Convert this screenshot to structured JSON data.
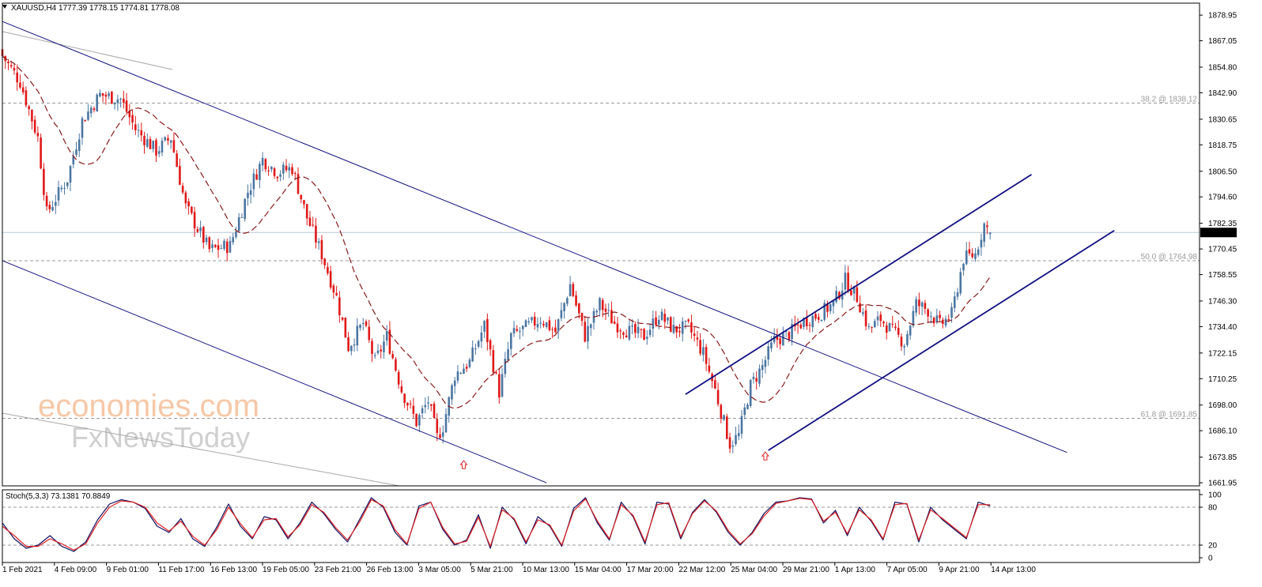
{
  "header": {
    "symbol_line": "XAUUSD,H4  1777.39 1778.15 1774.81 1778.08",
    "stoch_line": "Stoch(5,3,3) 73.1381 70.8849"
  },
  "watermark": {
    "line1": "economies.com",
    "line2": "FxNewsToday"
  },
  "colors": {
    "bull": "#4b76a2",
    "bear": "#e01818",
    "ma": "#8b1a1a",
    "channel": "#101080",
    "stoch_main": "#101060",
    "stoch_signal": "#e02020"
  },
  "chart_data": [
    {
      "type": "candlestick",
      "symbol": "XAUUSD",
      "timeframe": "H4",
      "last_ohlc": {
        "open": 1777.39,
        "high": 1778.15,
        "low": 1774.81,
        "close": 1778.08
      },
      "current_price_label": "1778.08",
      "y_ticks": [
        "1878.95",
        "1867.05",
        "1854.80",
        "1842.90",
        "1830.65",
        "1818.75",
        "1806.50",
        "1794.60",
        "1782.35",
        "1770.45",
        "1758.55",
        "1746.30",
        "1734.40",
        "1722.15",
        "1710.25",
        "1698.00",
        "1686.10",
        "1673.85",
        "1661.95"
      ],
      "ylim": [
        1660.5,
        1884.5
      ],
      "x_ticks": [
        "1 Feb 2021",
        "4 Feb 09:00",
        "9 Feb 01:00",
        "11 Feb 17:00",
        "16 Feb 13:00",
        "19 Feb 05:00",
        "23 Feb 21:00",
        "26 Feb 13:00",
        "3 Mar 05:00",
        "5 Mar 21:00",
        "10 Mar 13:00",
        "15 Mar 04:00",
        "17 Mar 20:00",
        "22 Mar 12:00",
        "25 Mar 04:00",
        "29 Mar 21:00",
        "1 Apr 13:00",
        "7 Apr 05:00",
        "9 Apr 21:00",
        "14 Apr 13:00"
      ],
      "close_path": [
        {
          "bar": 0,
          "price": 1860
        },
        {
          "bar": 6,
          "price": 1848
        },
        {
          "bar": 12,
          "price": 1822
        },
        {
          "bar": 15,
          "price": 1787
        },
        {
          "bar": 22,
          "price": 1803
        },
        {
          "bar": 27,
          "price": 1830
        },
        {
          "bar": 33,
          "price": 1842
        },
        {
          "bar": 40,
          "price": 1840
        },
        {
          "bar": 45,
          "price": 1826
        },
        {
          "bar": 52,
          "price": 1816
        },
        {
          "bar": 57,
          "price": 1822
        },
        {
          "bar": 62,
          "price": 1790
        },
        {
          "bar": 70,
          "price": 1770
        },
        {
          "bar": 77,
          "price": 1772
        },
        {
          "bar": 83,
          "price": 1797
        },
        {
          "bar": 88,
          "price": 1812
        },
        {
          "bar": 93,
          "price": 1806
        },
        {
          "bar": 98,
          "price": 1808
        },
        {
          "bar": 103,
          "price": 1785
        },
        {
          "bar": 108,
          "price": 1768
        },
        {
          "bar": 113,
          "price": 1748
        },
        {
          "bar": 117,
          "price": 1725
        },
        {
          "bar": 122,
          "price": 1736
        },
        {
          "bar": 126,
          "price": 1718
        },
        {
          "bar": 130,
          "price": 1730
        },
        {
          "bar": 135,
          "price": 1705
        },
        {
          "bar": 140,
          "price": 1690
        },
        {
          "bar": 144,
          "price": 1700
        },
        {
          "bar": 147,
          "price": 1683
        },
        {
          "bar": 149,
          "price": 1688
        },
        {
          "bar": 153,
          "price": 1712
        },
        {
          "bar": 158,
          "price": 1718
        },
        {
          "bar": 163,
          "price": 1735
        },
        {
          "bar": 168,
          "price": 1704
        },
        {
          "bar": 172,
          "price": 1730
        },
        {
          "bar": 177,
          "price": 1734
        },
        {
          "bar": 182,
          "price": 1738
        },
        {
          "bar": 187,
          "price": 1732
        },
        {
          "bar": 192,
          "price": 1754
        },
        {
          "bar": 197,
          "price": 1730
        },
        {
          "bar": 202,
          "price": 1745
        },
        {
          "bar": 207,
          "price": 1736
        },
        {
          "bar": 212,
          "price": 1732
        },
        {
          "bar": 217,
          "price": 1730
        },
        {
          "bar": 222,
          "price": 1740
        },
        {
          "bar": 227,
          "price": 1733
        },
        {
          "bar": 232,
          "price": 1734
        },
        {
          "bar": 237,
          "price": 1722
        },
        {
          "bar": 241,
          "price": 1705
        },
        {
          "bar": 244,
          "price": 1690
        },
        {
          "bar": 246,
          "price": 1680
        },
        {
          "bar": 249,
          "price": 1684
        },
        {
          "bar": 253,
          "price": 1707
        },
        {
          "bar": 257,
          "price": 1716
        },
        {
          "bar": 261,
          "price": 1728
        },
        {
          "bar": 266,
          "price": 1731
        },
        {
          "bar": 271,
          "price": 1737
        },
        {
          "bar": 276,
          "price": 1740
        },
        {
          "bar": 281,
          "price": 1745
        },
        {
          "bar": 285,
          "price": 1756
        },
        {
          "bar": 289,
          "price": 1748
        },
        {
          "bar": 293,
          "price": 1733
        },
        {
          "bar": 297,
          "price": 1738
        },
        {
          "bar": 301,
          "price": 1732
        },
        {
          "bar": 305,
          "price": 1727
        },
        {
          "bar": 309,
          "price": 1745
        },
        {
          "bar": 313,
          "price": 1742
        },
        {
          "bar": 317,
          "price": 1735
        },
        {
          "bar": 321,
          "price": 1740
        },
        {
          "bar": 325,
          "price": 1766
        },
        {
          "bar": 329,
          "price": 1768
        },
        {
          "bar": 332,
          "price": 1782
        },
        {
          "bar": 334,
          "price": 1778
        }
      ],
      "moving_average": "dashed dark red",
      "fibonacci_levels": [
        {
          "label": "38.2 @ 1838.12",
          "price": 1838.12
        },
        {
          "label": "50.0 @ 1764.98",
          "price": 1764.98
        },
        {
          "label": "61.8 @ 1691.85",
          "price": 1691.85
        }
      ],
      "trend_lines": [
        {
          "name": "descending-resistance",
          "from": {
            "bar": 0,
            "price": 1876
          },
          "to": {
            "bar": 360,
            "price": 1676
          }
        },
        {
          "name": "descending-support",
          "from": {
            "bar": 0,
            "price": 1765
          },
          "to": {
            "bar": 184,
            "price": 1661.95
          }
        },
        {
          "name": "ascending-channel-top",
          "from": {
            "bar": 231,
            "price": 1703
          },
          "to": {
            "bar": 348,
            "price": 1805
          }
        },
        {
          "name": "ascending-channel-bottom",
          "from": {
            "bar": 259,
            "price": 1677
          },
          "to": {
            "bar": 376,
            "price": 1779
          }
        }
      ],
      "markers": [
        {
          "type": "up-arrow",
          "bar": 156,
          "price": 1670
        },
        {
          "type": "up-arrow",
          "bar": 258,
          "price": 1674
        }
      ]
    },
    {
      "type": "line",
      "indicator": "Stoch(5,3,3)",
      "values_shown": [
        73.1381,
        70.8849
      ],
      "y_ticks": [
        "100",
        "80",
        "20",
        "0"
      ],
      "levels": [
        80,
        20
      ],
      "ylim": [
        0,
        100
      ],
      "series": [
        {
          "values": [
            55,
            30,
            15,
            20,
            35,
            18,
            10,
            25,
            60,
            85,
            92,
            88,
            78,
            50,
            40,
            62,
            30,
            18,
            48,
            85,
            50,
            30,
            65,
            60,
            30,
            55,
            88,
            70,
            45,
            25,
            60,
            95,
            80,
            40,
            20,
            82,
            88,
            45,
            20,
            28,
            68,
            15,
            80,
            60,
            22,
            65,
            50,
            18,
            78,
            95,
            55,
            28,
            88,
            65,
            22,
            88,
            85,
            30,
            72,
            92,
            72,
            40,
            20,
            40,
            70,
            88,
            90,
            95,
            93,
            55,
            75,
            35,
            80,
            58,
            28,
            88,
            85,
            25,
            80,
            60,
            45,
            30,
            88,
            82
          ]
        },
        {
          "values": [
            50,
            35,
            18,
            18,
            30,
            22,
            12,
            22,
            55,
            80,
            90,
            88,
            80,
            55,
            42,
            58,
            34,
            20,
            44,
            80,
            54,
            32,
            60,
            62,
            33,
            52,
            84,
            72,
            48,
            28,
            56,
            92,
            82,
            44,
            22,
            78,
            88,
            48,
            22,
            26,
            64,
            18,
            76,
            62,
            25,
            60,
            52,
            20,
            74,
            93,
            58,
            30,
            84,
            67,
            25,
            84,
            87,
            33,
            70,
            90,
            74,
            43,
            22,
            38,
            66,
            86,
            90,
            94,
            92,
            58,
            72,
            38,
            76,
            60,
            30,
            84,
            86,
            28,
            76,
            62,
            47,
            32,
            84,
            84
          ]
        }
      ]
    }
  ]
}
